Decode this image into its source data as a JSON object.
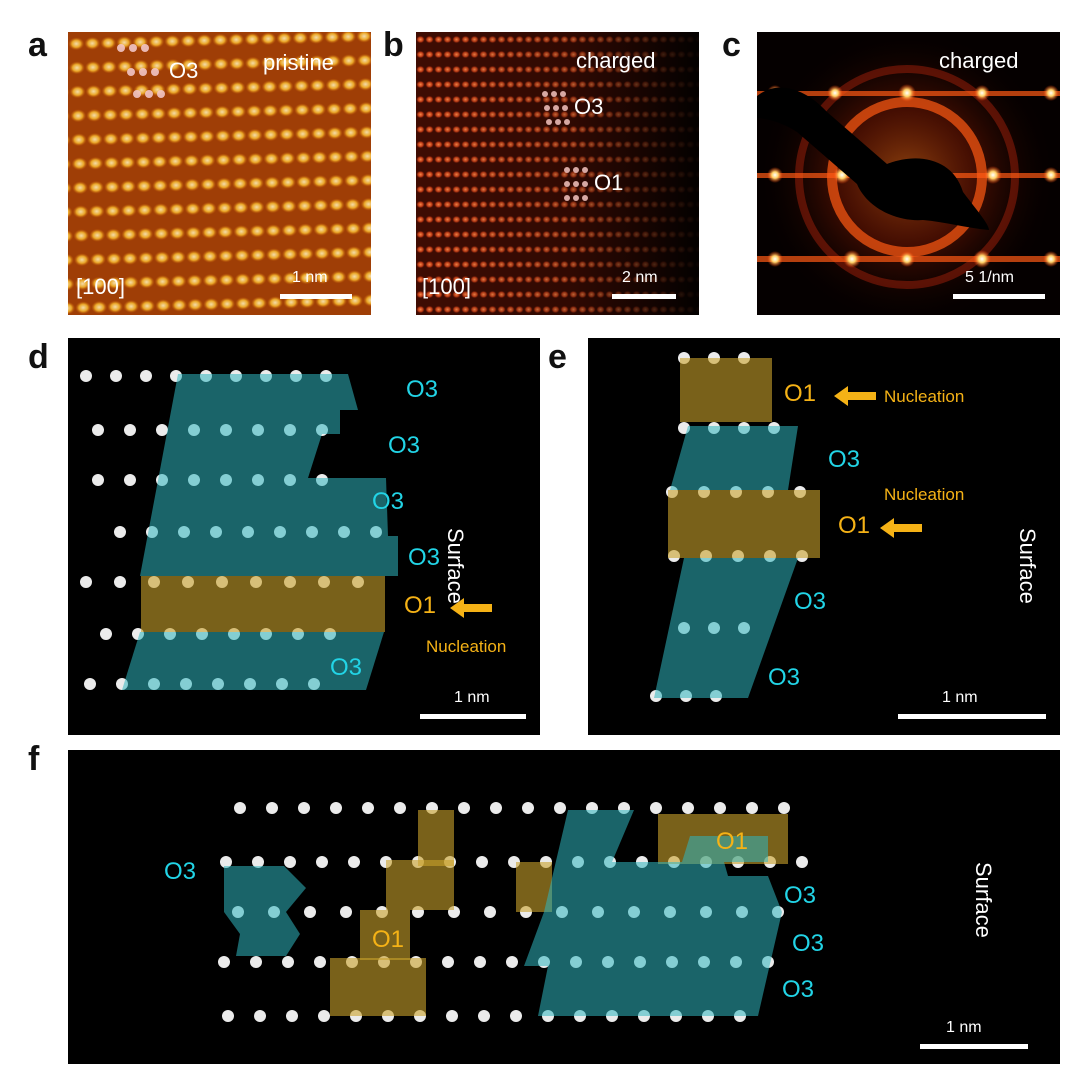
{
  "figure": {
    "panels": {
      "a": {
        "letter": "a",
        "condition": "pristine",
        "phase_label": "O3",
        "zone_axis": "[100]",
        "scale_bar": "1 nm"
      },
      "b": {
        "letter": "b",
        "condition": "charged",
        "phase_labels": [
          "O3",
          "O1"
        ],
        "zone_axis": "[100]",
        "scale_bar": "2 nm"
      },
      "c": {
        "letter": "c",
        "condition": "charged",
        "scale_bar": "5 1/nm"
      },
      "d": {
        "letter": "d",
        "layer_labels": [
          "O3",
          "O3",
          "O3",
          "O3",
          "O1",
          "O3"
        ],
        "arrow_text": "Nucleation",
        "side_label": "Surface",
        "scale_bar": "1 nm"
      },
      "e": {
        "letter": "e",
        "layer_labels": [
          "O1",
          "O3",
          "O1",
          "O3",
          "O3"
        ],
        "arrow_texts": [
          "Nucleation",
          "Nucleation"
        ],
        "side_label": "Surface",
        "scale_bar": "1 nm"
      },
      "f": {
        "letter": "f",
        "left_label": "O3",
        "o1_labels": [
          "O1",
          "O1"
        ],
        "right_labels": [
          "O3",
          "O3",
          "O3"
        ],
        "side_label": "Surface",
        "scale_bar": "1 nm"
      }
    },
    "colors": {
      "o3_text": "#22d4e6",
      "o1_text": "#f5b216",
      "o3_shade": "#2fb7c0",
      "o1_shade": "#c9a12b",
      "panel_bg": "#000000",
      "letters": "#111111"
    }
  }
}
